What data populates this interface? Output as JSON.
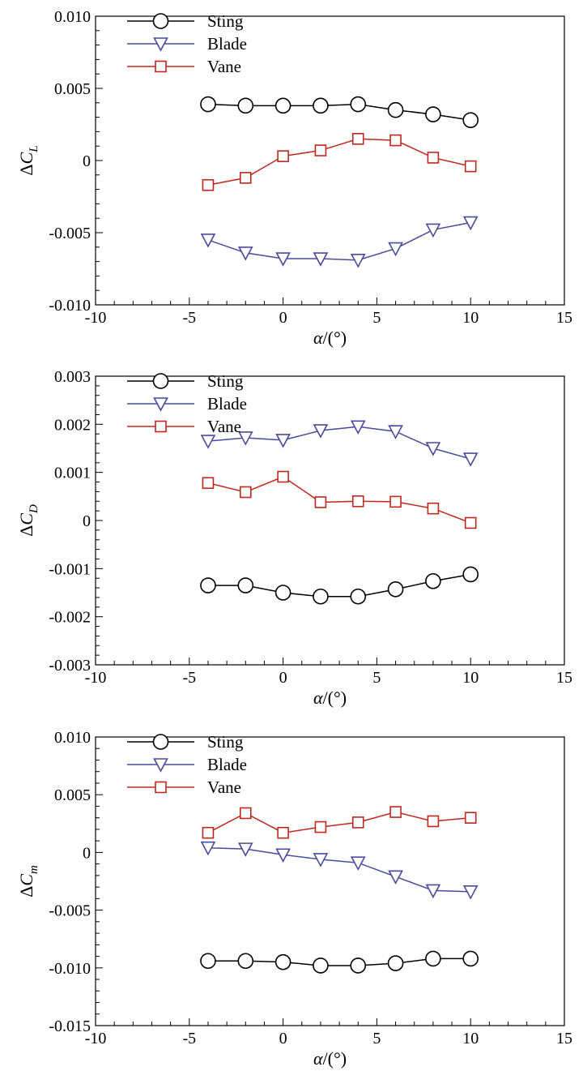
{
  "colors": {
    "Sting": "#000000",
    "Blade": "#4a4a9e",
    "Vane": "#c0281e"
  },
  "chart_data": [
    {
      "type": "line",
      "ylabel_prefix": "ΔC",
      "ylabel_sub": "L",
      "xlabel_alpha": "α",
      "xlabel_unit": "/(°)",
      "xlim": [
        -10,
        15
      ],
      "ylim": [
        -0.01,
        0.01
      ],
      "xticks": [
        -10,
        -5,
        0,
        5,
        10,
        15
      ],
      "xtick_labels": [
        "-10",
        "-5",
        "0",
        "5",
        "10",
        "15"
      ],
      "yticks": [
        -0.01,
        -0.005,
        0,
        0.005,
        0.01
      ],
      "ytick_labels": [
        "-0.010",
        "-0.005",
        "0",
        "0.005",
        "0.010"
      ],
      "x": [
        -4,
        -2,
        0,
        2,
        4,
        6,
        8,
        10
      ],
      "series": [
        {
          "name": "Sting",
          "marker": "circle",
          "values": [
            0.0039,
            0.0038,
            0.0038,
            0.0038,
            0.0039,
            0.0035,
            0.0032,
            0.0028
          ]
        },
        {
          "name": "Blade",
          "marker": "triangle-down",
          "values": [
            -0.0055,
            -0.0064,
            -0.0068,
            -0.0068,
            -0.0069,
            -0.0061,
            -0.0048,
            -0.0043
          ]
        },
        {
          "name": "Vane",
          "marker": "square",
          "values": [
            -0.0017,
            -0.0012,
            0.0003,
            0.0007,
            0.0015,
            0.0014,
            0.0002,
            -0.0004
          ]
        }
      ]
    },
    {
      "type": "line",
      "ylabel_prefix": "ΔC",
      "ylabel_sub": "D",
      "xlabel_alpha": "α",
      "xlabel_unit": "/(°)",
      "xlim": [
        -10,
        15
      ],
      "ylim": [
        -0.003,
        0.003
      ],
      "xticks": [
        -10,
        -5,
        0,
        5,
        10,
        15
      ],
      "xtick_labels": [
        "-10",
        "-5",
        "0",
        "5",
        "10",
        "15"
      ],
      "yticks": [
        -0.003,
        -0.002,
        -0.001,
        0,
        0.001,
        0.002,
        0.003
      ],
      "ytick_labels": [
        "-0.003",
        "-0.002",
        "-0.001",
        "0",
        "0.001",
        "0.002",
        "0.003"
      ],
      "x": [
        -4,
        -2,
        0,
        2,
        4,
        6,
        8,
        10
      ],
      "series": [
        {
          "name": "Sting",
          "marker": "circle",
          "values": [
            -0.00135,
            -0.00135,
            -0.0015,
            -0.00158,
            -0.00158,
            -0.00143,
            -0.00126,
            -0.00112
          ]
        },
        {
          "name": "Blade",
          "marker": "triangle-down",
          "values": [
            0.00165,
            0.00172,
            0.00167,
            0.00187,
            0.00195,
            0.00185,
            0.0015,
            0.00128
          ]
        },
        {
          "name": "Vane",
          "marker": "square",
          "values": [
            0.00078,
            0.00059,
            0.00091,
            0.00038,
            0.0004,
            0.00039,
            0.00025,
            -5e-05
          ]
        }
      ]
    },
    {
      "type": "line",
      "ylabel_prefix": "ΔC",
      "ylabel_sub": "m",
      "xlabel_alpha": "α",
      "xlabel_unit": "/(°)",
      "xlim": [
        -10,
        15
      ],
      "ylim": [
        -0.015,
        0.01
      ],
      "xticks": [
        -10,
        -5,
        0,
        5,
        10,
        15
      ],
      "xtick_labels": [
        "-10",
        "-5",
        "0",
        "5",
        "10",
        "15"
      ],
      "yticks": [
        -0.015,
        -0.01,
        -0.005,
        0,
        0.005,
        0.01
      ],
      "ytick_labels": [
        "-0.015",
        "-0.010",
        "-0.005",
        "0",
        "0.005",
        "0.010"
      ],
      "x": [
        -4,
        -2,
        0,
        2,
        4,
        6,
        8,
        10
      ],
      "series": [
        {
          "name": "Sting",
          "marker": "circle",
          "values": [
            -0.0094,
            -0.0094,
            -0.0095,
            -0.0098,
            -0.0098,
            -0.0096,
            -0.0092,
            -0.0092
          ]
        },
        {
          "name": "Blade",
          "marker": "triangle-down",
          "values": [
            0.0004,
            0.0003,
            -0.0002,
            -0.0006,
            -0.0009,
            -0.0021,
            -0.0033,
            -0.0034
          ]
        },
        {
          "name": "Vane",
          "marker": "square",
          "values": [
            0.0017,
            0.0034,
            0.0017,
            0.0022,
            0.0026,
            0.0035,
            0.0027,
            0.003
          ]
        }
      ]
    }
  ]
}
